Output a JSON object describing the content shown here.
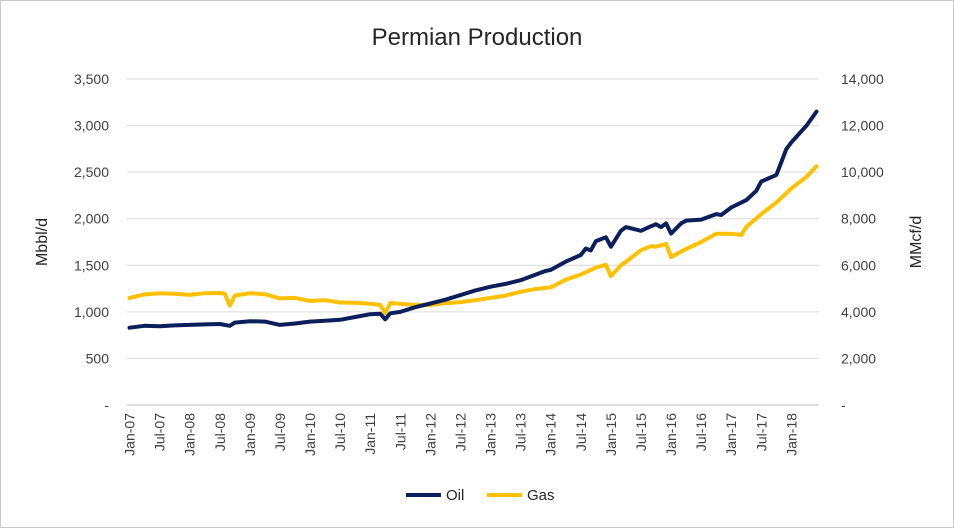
{
  "chart_data": {
    "type": "line",
    "title": "Permian Production",
    "ylabel": "Mbbl/d",
    "y2label": "MMcf/d",
    "ylim": [
      0,
      3500
    ],
    "y2lim": [
      0,
      14000
    ],
    "y_ticks": [
      "-",
      "500",
      "1,000",
      "1,500",
      "2,000",
      "2,500",
      "3,000",
      "3,500"
    ],
    "y2_ticks": [
      "-",
      "2,000",
      "4,000",
      "6,000",
      "8,000",
      "10,000",
      "12,000",
      "14,000"
    ],
    "x_ticks": [
      "Jan-07",
      "Jul-07",
      "Jan-08",
      "Jul-08",
      "Jan-09",
      "Jul-09",
      "Jan-10",
      "Jul-10",
      "Jan-11",
      "Jul-11",
      "Jan-12",
      "Jul-12",
      "Jan-13",
      "Jul-13",
      "Jan-14",
      "Jul-14",
      "Jan-15",
      "Jul-15",
      "Jan-16",
      "Jul-16",
      "Jan-17",
      "Jul-17",
      "Jan-18"
    ],
    "x_start": "Jan-07",
    "x_end": "Jun-18",
    "grid": true,
    "legend_position": "bottom",
    "series": [
      {
        "name": "Oil",
        "axis": "left",
        "color": "#0a1f5c",
        "points": [
          [
            "Jan-07",
            830
          ],
          [
            "Apr-07",
            850
          ],
          [
            "Jul-07",
            845
          ],
          [
            "Oct-07",
            855
          ],
          [
            "Jan-08",
            860
          ],
          [
            "Apr-08",
            865
          ],
          [
            "Jul-08",
            870
          ],
          [
            "Sep-08",
            850
          ],
          [
            "Oct-08",
            885
          ],
          [
            "Jan-09",
            900
          ],
          [
            "Apr-09",
            895
          ],
          [
            "Jul-09",
            860
          ],
          [
            "Oct-09",
            875
          ],
          [
            "Jan-10",
            895
          ],
          [
            "Apr-10",
            905
          ],
          [
            "Jul-10",
            915
          ],
          [
            "Oct-10",
            945
          ],
          [
            "Jan-11",
            975
          ],
          [
            "Mar-11",
            980
          ],
          [
            "Apr-11",
            920
          ],
          [
            "May-11",
            985
          ],
          [
            "Jul-11",
            1000
          ],
          [
            "Oct-11",
            1050
          ],
          [
            "Jan-12",
            1090
          ],
          [
            "Apr-12",
            1130
          ],
          [
            "Jul-12",
            1180
          ],
          [
            "Oct-12",
            1230
          ],
          [
            "Jan-13",
            1270
          ],
          [
            "Apr-13",
            1300
          ],
          [
            "Jul-13",
            1340
          ],
          [
            "Oct-13",
            1400
          ],
          [
            "Dec-13",
            1440
          ],
          [
            "Jan-14",
            1450
          ],
          [
            "Apr-14",
            1540
          ],
          [
            "Jul-14",
            1610
          ],
          [
            "Aug-14",
            1680
          ],
          [
            "Sep-14",
            1660
          ],
          [
            "Oct-14",
            1760
          ],
          [
            "Dec-14",
            1800
          ],
          [
            "Jan-15",
            1700
          ],
          [
            "Mar-15",
            1870
          ],
          [
            "Apr-15",
            1910
          ],
          [
            "Jul-15",
            1870
          ],
          [
            "Sep-15",
            1920
          ],
          [
            "Oct-15",
            1940
          ],
          [
            "Nov-15",
            1910
          ],
          [
            "Dec-15",
            1950
          ],
          [
            "Jan-16",
            1840
          ],
          [
            "Mar-16",
            1950
          ],
          [
            "Apr-16",
            1980
          ],
          [
            "Jul-16",
            1990
          ],
          [
            "Oct-16",
            2050
          ],
          [
            "Nov-16",
            2040
          ],
          [
            "Jan-17",
            2120
          ],
          [
            "Apr-17",
            2200
          ],
          [
            "Jun-17",
            2300
          ],
          [
            "Jul-17",
            2400
          ],
          [
            "Oct-17",
            2470
          ],
          [
            "Dec-17",
            2750
          ],
          [
            "Jan-18",
            2820
          ],
          [
            "Apr-18",
            3000
          ],
          [
            "Jun-18",
            3150
          ]
        ]
      },
      {
        "name": "Gas",
        "axis": "right",
        "color": "#ffc000",
        "points": [
          [
            "Jan-07",
            4600
          ],
          [
            "Apr-07",
            4750
          ],
          [
            "Jul-07",
            4800
          ],
          [
            "Oct-07",
            4780
          ],
          [
            "Jan-08",
            4730
          ],
          [
            "Apr-08",
            4800
          ],
          [
            "Jul-08",
            4810
          ],
          [
            "Aug-08",
            4780
          ],
          [
            "Sep-08",
            4270
          ],
          [
            "Oct-08",
            4700
          ],
          [
            "Jan-09",
            4800
          ],
          [
            "Apr-09",
            4760
          ],
          [
            "Jul-09",
            4580
          ],
          [
            "Oct-09",
            4600
          ],
          [
            "Jan-10",
            4470
          ],
          [
            "Apr-10",
            4500
          ],
          [
            "Jul-10",
            4400
          ],
          [
            "Oct-10",
            4390
          ],
          [
            "Jan-11",
            4350
          ],
          [
            "Mar-11",
            4300
          ],
          [
            "Apr-11",
            3950
          ],
          [
            "May-11",
            4380
          ],
          [
            "Jul-11",
            4350
          ],
          [
            "Oct-11",
            4300
          ],
          [
            "Jan-12",
            4300
          ],
          [
            "Apr-12",
            4370
          ],
          [
            "Jul-12",
            4420
          ],
          [
            "Oct-12",
            4500
          ],
          [
            "Jan-13",
            4600
          ],
          [
            "Apr-13",
            4700
          ],
          [
            "Jul-13",
            4860
          ],
          [
            "Oct-13",
            4980
          ],
          [
            "Jan-14",
            5050
          ],
          [
            "Apr-14",
            5380
          ],
          [
            "Jul-14",
            5600
          ],
          [
            "Oct-14",
            5900
          ],
          [
            "Dec-14",
            6020
          ],
          [
            "Jan-15",
            5530
          ],
          [
            "Mar-15",
            6000
          ],
          [
            "Apr-15",
            6150
          ],
          [
            "Jul-15",
            6650
          ],
          [
            "Sep-15",
            6820
          ],
          [
            "Oct-15",
            6800
          ],
          [
            "Dec-15",
            6920
          ],
          [
            "Jan-16",
            6350
          ],
          [
            "Apr-16",
            6700
          ],
          [
            "Jul-16",
            7000
          ],
          [
            "Oct-16",
            7350
          ],
          [
            "Jan-17",
            7350
          ],
          [
            "Mar-17",
            7300
          ],
          [
            "Apr-17",
            7650
          ],
          [
            "Jul-17",
            8200
          ],
          [
            "Oct-17",
            8700
          ],
          [
            "Jan-18",
            9300
          ],
          [
            "Apr-18",
            9800
          ],
          [
            "Jun-18",
            10250
          ]
        ]
      }
    ]
  }
}
